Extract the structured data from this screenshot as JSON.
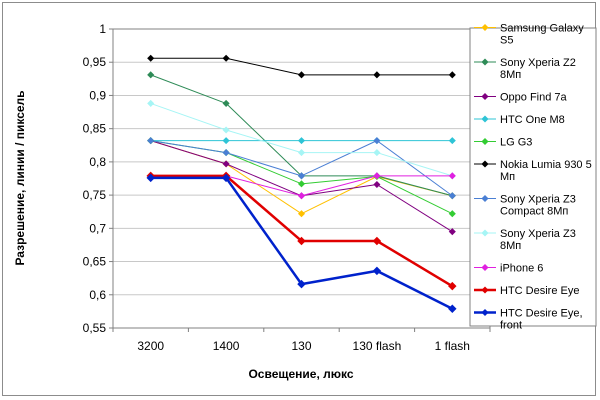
{
  "chart_data": {
    "type": "line",
    "title": "",
    "xlabel": "Освещение, люкс",
    "ylabel": "Разрешение, линии / пиксель",
    "categories": [
      "3200",
      "1400",
      "130",
      "130 flash",
      "1 flash"
    ],
    "ylim": [
      0.55,
      1
    ],
    "yticks": [
      0.55,
      0.6,
      0.65,
      0.7,
      0.75,
      0.8,
      0.85,
      0.9,
      0.95,
      1
    ],
    "ytick_labels": [
      "0,55",
      "0,6",
      "0,65",
      "0,7",
      "0,75",
      "0,8",
      "0,85",
      "0,9",
      "0,95",
      "1"
    ],
    "grid": "horizontal",
    "legend_position": "right",
    "series": [
      {
        "name": "Samsung Galaxy S5",
        "color": "#ffc000",
        "width": 1,
        "values": [
          0.832,
          0.797,
          0.722,
          0.778,
          0.749
        ]
      },
      {
        "name": "Sony Xperia Z2 8Мп",
        "color": "#2e8b57",
        "width": 1,
        "values": [
          0.931,
          0.888,
          0.779,
          0.779,
          0.749
        ]
      },
      {
        "name": "Oppo Find 7a",
        "color": "#800080",
        "width": 1,
        "values": [
          0.832,
          0.797,
          0.749,
          0.766,
          0.695
        ]
      },
      {
        "name": "HTC One M8",
        "color": "#2ec4d6",
        "width": 1,
        "values": [
          0.832,
          0.832,
          0.832,
          0.832,
          0.832
        ]
      },
      {
        "name": "LG G3",
        "color": "#33cc33",
        "width": 1,
        "values": [
          0.832,
          0.814,
          0.767,
          0.778,
          0.722
        ]
      },
      {
        "name": "Nokia Lumia 930 5 Мп",
        "color": "#000000",
        "width": 1,
        "values": [
          0.956,
          0.956,
          0.931,
          0.931,
          0.931
        ]
      },
      {
        "name": "Sony Xperia Z3 Compact 8Мп",
        "color": "#4a7fd4",
        "width": 1,
        "values": [
          0.832,
          0.814,
          0.779,
          0.832,
          0.749
        ]
      },
      {
        "name": "Sony Xperia Z3 8Мп",
        "color": "#a6f5f5",
        "width": 1,
        "values": [
          0.888,
          0.848,
          0.814,
          0.814,
          0.779
        ]
      },
      {
        "name": "iPhone 6",
        "color": "#e020e0",
        "width": 1,
        "values": [
          0.779,
          0.779,
          0.749,
          0.779,
          0.779
        ]
      },
      {
        "name": "HTC Desire Eye",
        "color": "#e00000",
        "width": 2.5,
        "values": [
          0.779,
          0.779,
          0.681,
          0.681,
          0.613
        ]
      },
      {
        "name": "HTC Desire Eye, front",
        "color": "#0022cc",
        "width": 2.5,
        "values": [
          0.776,
          0.776,
          0.616,
          0.636,
          0.579
        ]
      }
    ]
  }
}
